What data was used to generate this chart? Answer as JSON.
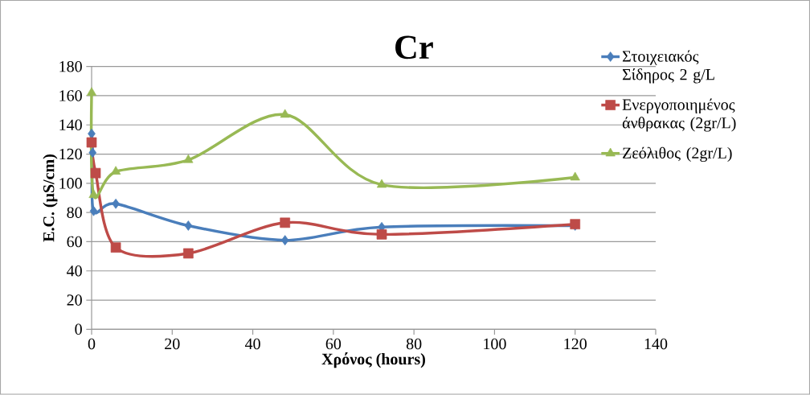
{
  "chart_data": {
    "type": "line",
    "title": "Cr",
    "xlabel": "Χρόνος (hours)",
    "ylabel": "E.C. (μS/cm)",
    "xlim": [
      0,
      140
    ],
    "xticks": [
      0,
      20,
      40,
      60,
      80,
      100,
      120,
      140
    ],
    "ylim": [
      0,
      180
    ],
    "yticks": [
      0,
      20,
      40,
      60,
      80,
      100,
      120,
      140,
      160,
      180
    ],
    "grid": "y",
    "legend": "right",
    "line_style": "solid",
    "series": [
      {
        "name": "Στοιχειακός Σίδηρος  2 g/L",
        "color": "#4a7ebb",
        "marker": "diamond",
        "x": [
          0,
          0.25,
          0.5,
          6,
          24,
          48,
          72,
          120
        ],
        "values": [
          134,
          121,
          81,
          86,
          71,
          61,
          70,
          71
        ]
      },
      {
        "name": "Ενεργοποιημένος άνθρακας (2gr/L)",
        "color": "#be4b48",
        "marker": "square",
        "x": [
          0,
          1,
          6,
          24,
          48,
          72,
          120
        ],
        "values": [
          128,
          107,
          56,
          52,
          73,
          65,
          72
        ]
      },
      {
        "name": "Ζεόλιθος (2gr/L)",
        "color": "#98b954",
        "marker": "triangle",
        "x": [
          0,
          0.5,
          6,
          24,
          48,
          72,
          120
        ],
        "values": [
          162,
          92,
          108,
          116,
          147,
          99,
          104
        ]
      }
    ]
  }
}
